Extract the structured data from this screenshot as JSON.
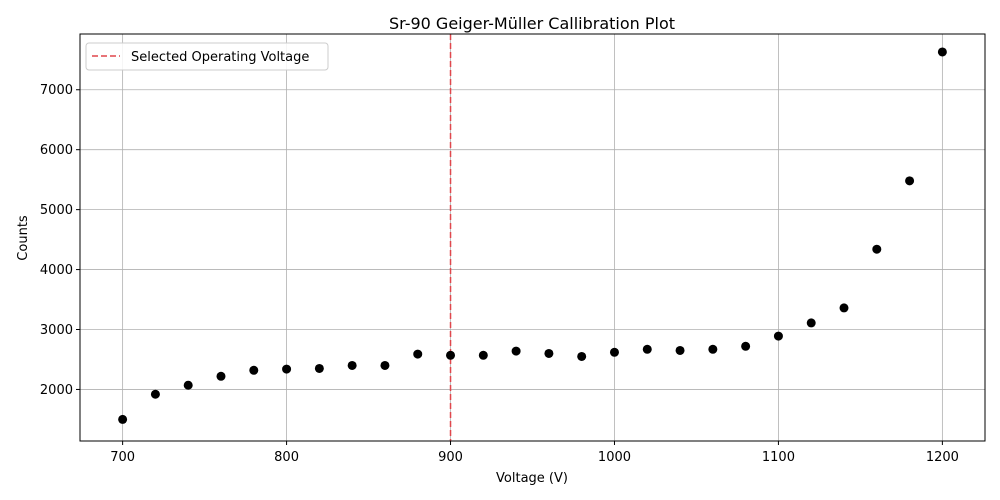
{
  "chart_data": {
    "type": "scatter",
    "title": "Sr-90 Geiger-Müller Callibration Plot",
    "xlabel": "Voltage (V)",
    "ylabel": "Counts",
    "xlim": [
      674,
      1226
    ],
    "ylim": [
      1140,
      7930
    ],
    "xticks": [
      700,
      800,
      900,
      1000,
      1100,
      1200
    ],
    "yticks": [
      2000,
      3000,
      4000,
      5000,
      6000,
      7000
    ],
    "grid": true,
    "legend_position": "upper-left",
    "series": [
      {
        "marker_color": "#000000",
        "x": [
          700,
          720,
          740,
          760,
          780,
          800,
          820,
          840,
          860,
          880,
          900,
          920,
          940,
          960,
          980,
          1000,
          1020,
          1040,
          1060,
          1080,
          1100,
          1120,
          1140,
          1160,
          1180,
          1200
        ],
        "y": [
          1500,
          1920,
          2070,
          2220,
          2320,
          2340,
          2350,
          2400,
          2400,
          2590,
          2570,
          2570,
          2640,
          2600,
          2550,
          2620,
          2670,
          2650,
          2670,
          2720,
          2890,
          3110,
          3360,
          4340,
          5480,
          7630
        ]
      }
    ],
    "reference_lines": [
      {
        "orientation": "vertical",
        "x": 900,
        "style": "dashed",
        "color": "#e0474c",
        "label": "Selected Operating Voltage"
      }
    ]
  }
}
